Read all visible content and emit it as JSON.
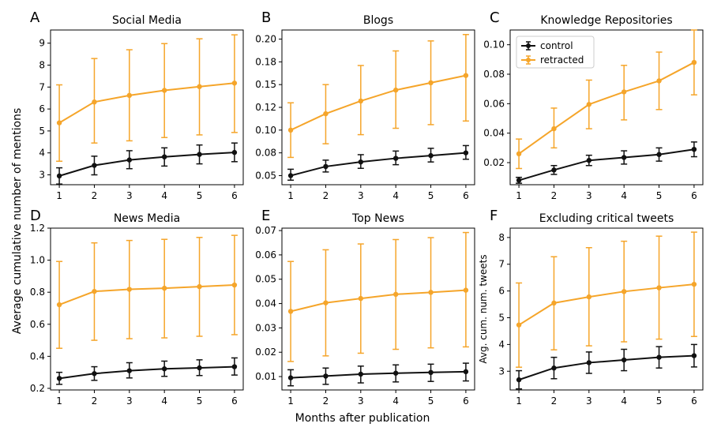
{
  "figure": {
    "xlabel": "Months after publication",
    "ylabel": "Average cumulative number of mentions"
  },
  "colors": {
    "control": "#111111",
    "retracted": "#f5a52a"
  },
  "chart_data": [
    {
      "letter": "A",
      "title": "Social Media",
      "type": "line",
      "x": [
        1,
        2,
        3,
        4,
        5,
        6
      ],
      "ylim": [
        2.55,
        9.6
      ],
      "yticks": [
        3,
        4,
        5,
        6,
        7,
        8,
        9
      ],
      "ytick_labels": [
        "3",
        "4",
        "5",
        "6",
        "7",
        "8",
        "9"
      ],
      "series": [
        {
          "name": "control",
          "values": [
            2.95,
            3.43,
            3.68,
            3.82,
            3.93,
            4.02
          ],
          "lower": [
            2.58,
            3.0,
            3.28,
            3.4,
            3.5,
            3.6
          ],
          "upper": [
            3.32,
            3.85,
            4.1,
            4.23,
            4.36,
            4.45
          ]
        },
        {
          "name": "retracted",
          "values": [
            5.37,
            6.32,
            6.62,
            6.85,
            7.02,
            7.18
          ],
          "lower": [
            3.62,
            4.45,
            4.55,
            4.7,
            4.82,
            4.93
          ],
          "upper": [
            7.1,
            8.3,
            8.7,
            8.98,
            9.2,
            9.38
          ]
        }
      ]
    },
    {
      "letter": "B",
      "title": "Blogs",
      "type": "line",
      "x": [
        1,
        2,
        3,
        4,
        5,
        6
      ],
      "ylim": [
        0.04,
        0.21
      ],
      "yticks": [
        0.05,
        0.075,
        0.1,
        0.125,
        0.15,
        0.175,
        0.2
      ],
      "ytick_labels": [
        "0.05",
        "0.08",
        "0.10",
        "0.12",
        "0.15",
        "0.18",
        "0.20"
      ],
      "series": [
        {
          "name": "control",
          "values": [
            0.05,
            0.06,
            0.065,
            0.069,
            0.072,
            0.075
          ],
          "lower": [
            0.045,
            0.054,
            0.058,
            0.062,
            0.065,
            0.068
          ],
          "upper": [
            0.057,
            0.067,
            0.073,
            0.077,
            0.08,
            0.083
          ]
        },
        {
          "name": "retracted",
          "values": [
            0.1,
            0.118,
            0.132,
            0.144,
            0.152,
            0.16
          ],
          "lower": [
            0.07,
            0.085,
            0.095,
            0.102,
            0.106,
            0.11
          ],
          "upper": [
            0.13,
            0.15,
            0.171,
            0.187,
            0.198,
            0.205
          ]
        }
      ]
    },
    {
      "letter": "C",
      "title": "Knowledge Repositories",
      "type": "line",
      "x": [
        1,
        2,
        3,
        4,
        5,
        6
      ],
      "ylim": [
        0.005,
        0.11
      ],
      "yticks": [
        0.02,
        0.04,
        0.06,
        0.08,
        0.1
      ],
      "ytick_labels": [
        "0.02",
        "0.04",
        "0.06",
        "0.08",
        "0.10"
      ],
      "legend": [
        "control",
        "retracted"
      ],
      "legend_position": "upper-left",
      "series": [
        {
          "name": "control",
          "values": [
            0.008,
            0.015,
            0.0215,
            0.0235,
            0.0255,
            0.029
          ],
          "lower": [
            0.006,
            0.012,
            0.018,
            0.019,
            0.021,
            0.024
          ],
          "upper": [
            0.01,
            0.018,
            0.025,
            0.028,
            0.03,
            0.034
          ]
        },
        {
          "name": "retracted",
          "values": [
            0.026,
            0.043,
            0.0595,
            0.068,
            0.0755,
            0.088
          ],
          "lower": [
            0.016,
            0.03,
            0.043,
            0.049,
            0.056,
            0.066
          ],
          "upper": [
            0.036,
            0.057,
            0.076,
            0.086,
            0.095,
            0.11
          ]
        }
      ]
    },
    {
      "letter": "D",
      "title": "News Media",
      "type": "line",
      "x": [
        1,
        2,
        3,
        4,
        5,
        6
      ],
      "ylim": [
        0.19,
        1.2
      ],
      "yticks": [
        0.2,
        0.4,
        0.6,
        0.8,
        1.0,
        1.2
      ],
      "ytick_labels": [
        "0.2",
        "0.4",
        "0.6",
        "0.8",
        "1.0",
        "1.2"
      ],
      "series": [
        {
          "name": "control",
          "values": [
            0.262,
            0.292,
            0.31,
            0.322,
            0.328,
            0.335
          ],
          "lower": [
            0.225,
            0.25,
            0.265,
            0.275,
            0.28,
            0.283
          ],
          "upper": [
            0.3,
            0.335,
            0.36,
            0.37,
            0.378,
            0.39
          ]
        },
        {
          "name": "retracted",
          "values": [
            0.722,
            0.805,
            0.818,
            0.825,
            0.835,
            0.845
          ],
          "lower": [
            0.45,
            0.5,
            0.51,
            0.515,
            0.525,
            0.535
          ],
          "upper": [
            0.992,
            1.108,
            1.123,
            1.13,
            1.142,
            1.155
          ]
        }
      ]
    },
    {
      "letter": "E",
      "title": "Top News",
      "type": "line",
      "x": [
        1,
        2,
        3,
        4,
        5,
        6
      ],
      "ylim": [
        0.0045,
        0.071
      ],
      "yticks": [
        0.01,
        0.02,
        0.03,
        0.04,
        0.05,
        0.06,
        0.07
      ],
      "ytick_labels": [
        "0.01",
        "0.02",
        "0.03",
        "0.04",
        "0.05",
        "0.06",
        "0.07"
      ],
      "series": [
        {
          "name": "control",
          "values": [
            0.0095,
            0.0102,
            0.011,
            0.0114,
            0.0117,
            0.012
          ],
          "lower": [
            0.0062,
            0.0068,
            0.0074,
            0.0078,
            0.008,
            0.0082
          ],
          "upper": [
            0.0128,
            0.0135,
            0.0143,
            0.0148,
            0.0151,
            0.0155
          ]
        },
        {
          "name": "retracted",
          "values": [
            0.0368,
            0.0403,
            0.0421,
            0.0438,
            0.0446,
            0.0455
          ],
          "lower": [
            0.0162,
            0.0185,
            0.0196,
            0.0212,
            0.0218,
            0.0222
          ],
          "upper": [
            0.0573,
            0.0621,
            0.0645,
            0.0663,
            0.0671,
            0.0692
          ]
        }
      ]
    },
    {
      "letter": "F",
      "title": "Excluding critical tweets",
      "type": "line",
      "x": [
        1,
        2,
        3,
        4,
        5,
        6
      ],
      "ylim": [
        2.3,
        8.35
      ],
      "yticks": [
        3,
        4,
        5,
        6,
        7,
        8
      ],
      "ytick_labels": [
        "3",
        "4",
        "5",
        "6",
        "7",
        "8"
      ],
      "ylabel": "Avg. cum. num. tweets",
      "series": [
        {
          "name": "control",
          "values": [
            2.68,
            3.12,
            3.32,
            3.42,
            3.52,
            3.58
          ],
          "lower": [
            2.34,
            2.72,
            2.92,
            3.02,
            3.12,
            3.16
          ],
          "upper": [
            3.02,
            3.52,
            3.72,
            3.82,
            3.92,
            4.0
          ]
        },
        {
          "name": "retracted",
          "values": [
            4.73,
            5.55,
            5.78,
            5.98,
            6.12,
            6.25
          ],
          "lower": [
            3.15,
            3.8,
            3.95,
            4.1,
            4.2,
            4.3
          ],
          "upper": [
            6.3,
            7.28,
            7.62,
            7.86,
            8.05,
            8.2
          ]
        }
      ]
    }
  ]
}
